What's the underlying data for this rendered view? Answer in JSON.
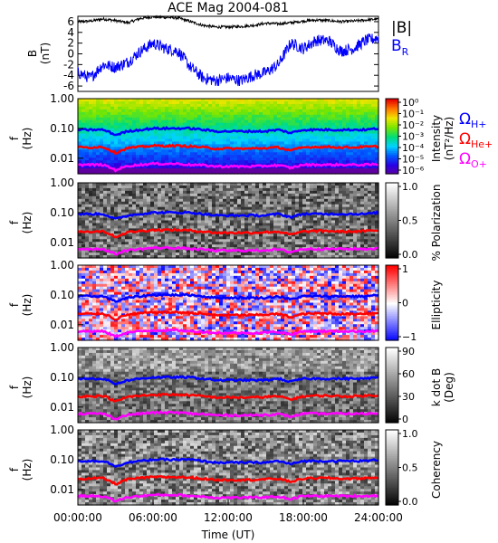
{
  "title": "ACE Mag 2004-081",
  "xaxis": {
    "label": "Time (UT)",
    "ticks": [
      "00:00:00",
      "06:00:00",
      "12:00:00",
      "18:00:00",
      "24:00:00"
    ],
    "range_hours": [
      0,
      24
    ]
  },
  "legend_top": {
    "b_total": "|B|",
    "b_radial": "B",
    "b_radial_sub": "R"
  },
  "gyro_labels": [
    {
      "symbol": "Ω",
      "sub": "H+",
      "color": "#0000ff"
    },
    {
      "symbol": "Ω",
      "sub": "He+",
      "color": "#ff0000"
    },
    {
      "symbol": "Ω",
      "sub": "O+",
      "color": "#ff00ff"
    }
  ],
  "freq_axis": {
    "label": "f",
    "unit": "(Hz)",
    "ticks": [
      "1.00",
      "0.10",
      "0.01"
    ]
  },
  "colors": {
    "h_plus": "#0000ff",
    "he_plus": "#ff0000",
    "o_plus": "#ff00ff",
    "b_total": "#000000",
    "b_radial": "#0000ff"
  },
  "panels": [
    {
      "id": "intensity",
      "colorbar_label": "Intensity",
      "colorbar_unit": "(nT²/Hz)",
      "colorbar_ticks": [
        "10⁰",
        "10⁻¹",
        "10⁻²",
        "10⁻³",
        "10⁻⁴",
        "10⁻⁵",
        "10⁻⁶"
      ],
      "colormap": "rainbow"
    },
    {
      "id": "polarization",
      "colorbar_label": "% Polarization",
      "colorbar_unit": "",
      "colorbar_ticks": [
        "1.0",
        "0.5",
        "0.0"
      ],
      "colormap": "gray"
    },
    {
      "id": "ellipticity",
      "colorbar_label": "Ellipticity",
      "colorbar_unit": "",
      "colorbar_ticks": [
        "1",
        "0",
        "−1"
      ],
      "colormap": "bwr"
    },
    {
      "id": "kdotb",
      "colorbar_label": "k dot B",
      "colorbar_unit": "(Deg)",
      "colorbar_ticks": [
        "90",
        "60",
        "30",
        "0"
      ],
      "colormap": "gray"
    },
    {
      "id": "coherency",
      "colorbar_label": "Coherency",
      "colorbar_unit": "",
      "colorbar_ticks": [
        "1.0",
        "0.5",
        "0.0"
      ],
      "colormap": "gray"
    }
  ],
  "chart_data": {
    "type": "line",
    "title": "ACE Mag 2004-081",
    "xlabel": "Time (UT)",
    "ylabel": "B (nT)",
    "xlim": [
      0,
      24
    ],
    "ylim": [
      -7,
      7
    ],
    "yticks": [
      -6,
      -4,
      -2,
      0,
      2,
      4,
      6
    ],
    "x": [
      0,
      1,
      2,
      3,
      4,
      5,
      6,
      7,
      8,
      9,
      10,
      11,
      12,
      13,
      14,
      15,
      16,
      17,
      18,
      19,
      20,
      21,
      22,
      23,
      24
    ],
    "series": [
      {
        "name": "|B|",
        "values": [
          6,
          6.1,
          6.5,
          6.2,
          5.8,
          6.6,
          6.9,
          6.8,
          6.7,
          6.0,
          5.3,
          5.0,
          5.0,
          5.1,
          5.3,
          5.7,
          5.6,
          5.8,
          6.1,
          6.3,
          6.2,
          6.0,
          6.1,
          6.3,
          6.5
        ]
      },
      {
        "name": "B_R",
        "values": [
          -3.5,
          -4.5,
          -2.0,
          -2.5,
          -1.5,
          0.5,
          2.0,
          1.0,
          0.5,
          -2.5,
          -4.5,
          -5.0,
          -4.5,
          -5.0,
          -4.0,
          -3.5,
          -2.0,
          2.0,
          1.0,
          2.5,
          2.5,
          0.5,
          1.0,
          2.5,
          3.0
        ]
      }
    ],
    "spectrogram_frequency_range_hz": [
      0.003,
      1.0
    ],
    "gyrofrequency_lines": [
      {
        "name": "Ω_H+",
        "freq_hz": [
          0.09,
          0.09,
          0.09,
          0.06,
          0.08,
          0.09,
          0.1,
          0.1,
          0.1,
          0.1,
          0.09,
          0.08,
          0.08,
          0.08,
          0.08,
          0.08,
          0.09,
          0.07,
          0.09,
          0.09,
          0.09,
          0.09,
          0.09,
          0.09,
          0.1
        ]
      },
      {
        "name": "Ω_He+",
        "freq_hz": [
          0.023,
          0.023,
          0.024,
          0.015,
          0.022,
          0.024,
          0.026,
          0.026,
          0.026,
          0.025,
          0.023,
          0.021,
          0.021,
          0.021,
          0.021,
          0.022,
          0.023,
          0.018,
          0.023,
          0.024,
          0.024,
          0.023,
          0.023,
          0.024,
          0.025
        ]
      },
      {
        "name": "Ω_O+",
        "freq_hz": [
          0.006,
          0.006,
          0.006,
          0.004,
          0.0055,
          0.006,
          0.0065,
          0.0065,
          0.0065,
          0.006,
          0.0058,
          0.0053,
          0.0053,
          0.0053,
          0.0053,
          0.0055,
          0.0058,
          0.0047,
          0.006,
          0.006,
          0.006,
          0.006,
          0.006,
          0.006,
          0.0062
        ]
      }
    ]
  }
}
